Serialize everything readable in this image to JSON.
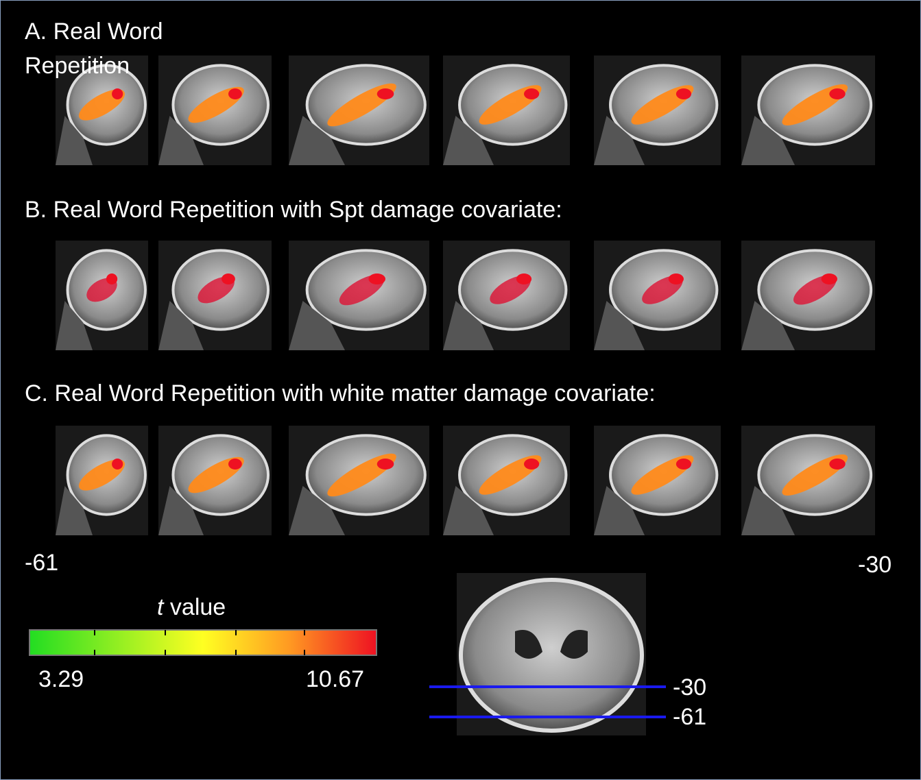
{
  "panels": [
    {
      "title": "A. Real Word Repetition"
    },
    {
      "title": "B. Real Word Repetition with Spt damage covariate:"
    },
    {
      "title": "C. Real Word Repetition with white matter damage covariate:"
    }
  ],
  "slice_range": {
    "left": -61,
    "right": -30
  },
  "colorbar": {
    "label_italic": "t",
    "label": "value",
    "min": 3.29,
    "max": 10.67
  },
  "axial": {
    "lines": [
      -30,
      -61
    ]
  }
}
